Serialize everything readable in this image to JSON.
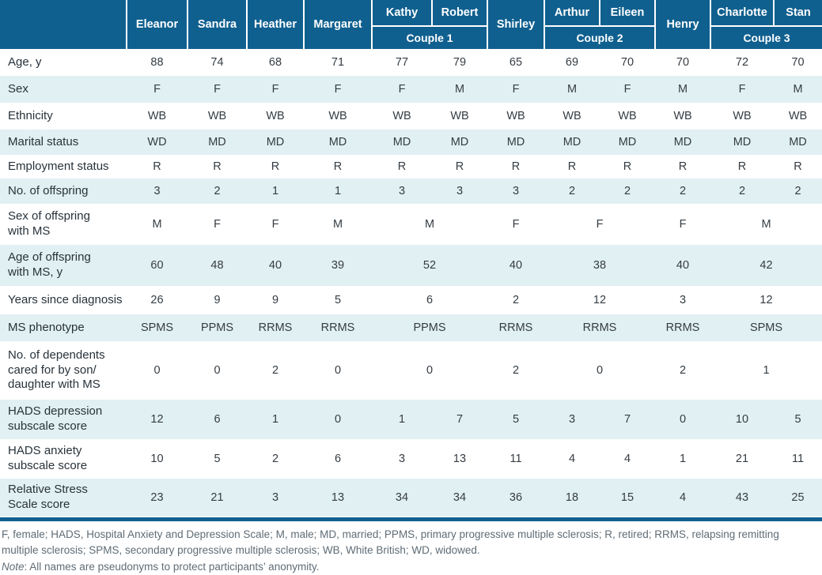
{
  "colors": {
    "header_blue": "#10608f",
    "row_band": "#e1f0f3"
  },
  "table": {
    "corner_label": "",
    "columns": [
      "Eleanor",
      "Sandra",
      "Heather",
      "Margaret",
      "Kathy",
      "Robert",
      "Shirley",
      "Arthur",
      "Eileen",
      "Henry",
      "Charlotte",
      "Stan"
    ],
    "couples": [
      {
        "label": "Couple 1",
        "start": 4,
        "span": 2
      },
      {
        "label": "Couple 2",
        "start": 7,
        "span": 2
      },
      {
        "label": "Couple 3",
        "start": 10,
        "span": 2
      }
    ],
    "rows": [
      {
        "label": "Age, y",
        "cells": [
          "88",
          "74",
          "68",
          "71",
          "77",
          "79",
          "65",
          "69",
          "70",
          "70",
          "72",
          "70"
        ]
      },
      {
        "label": "Sex",
        "cells": [
          "F",
          "F",
          "F",
          "F",
          "F",
          "M",
          "F",
          "M",
          "F",
          "M",
          "F",
          "M"
        ]
      },
      {
        "label": "Ethnicity",
        "cells": [
          "WB",
          "WB",
          "WB",
          "WB",
          "WB",
          "WB",
          "WB",
          "WB",
          "WB",
          "WB",
          "WB",
          "WB"
        ]
      },
      {
        "label": "Marital status",
        "cells": [
          "WD",
          "MD",
          "MD",
          "MD",
          "MD",
          "MD",
          "MD",
          "MD",
          "MD",
          "MD",
          "MD",
          "MD"
        ]
      },
      {
        "label": "Employment status",
        "cells": [
          "R",
          "R",
          "R",
          "R",
          "R",
          "R",
          "R",
          "R",
          "R",
          "R",
          "R",
          "R"
        ]
      },
      {
        "label": "No. of offspring",
        "cells": [
          "3",
          "2",
          "1",
          "1",
          "3",
          "3",
          "3",
          "2",
          "2",
          "2",
          "2",
          "2"
        ]
      },
      {
        "label": "Sex of offspring\nwith MS",
        "cells": [
          "M",
          "F",
          "F",
          "M",
          {
            "v": "M",
            "span": 2
          },
          "F",
          {
            "v": "F",
            "span": 2
          },
          "F",
          {
            "v": "M",
            "span": 2
          }
        ]
      },
      {
        "label": "Age of offspring\nwith MS, y",
        "cells": [
          "60",
          "48",
          "40",
          "39",
          {
            "v": "52",
            "span": 2
          },
          "40",
          {
            "v": "38",
            "span": 2
          },
          "40",
          {
            "v": "42",
            "span": 2
          }
        ]
      },
      {
        "label": "Years since diagnosis",
        "cells": [
          "26",
          "9",
          "9",
          "5",
          {
            "v": "6",
            "span": 2
          },
          "2",
          {
            "v": "12",
            "span": 2
          },
          "3",
          {
            "v": "12",
            "span": 2
          }
        ]
      },
      {
        "label": "MS phenotype",
        "cells": [
          "SPMS",
          "PPMS",
          "RRMS",
          "RRMS",
          {
            "v": "PPMS",
            "span": 2
          },
          "RRMS",
          {
            "v": "RRMS",
            "span": 2
          },
          "RRMS",
          {
            "v": "SPMS",
            "span": 2
          }
        ]
      },
      {
        "label": "No. of dependents\ncared for by son/\ndaughter with MS",
        "cells": [
          "0",
          "0",
          "2",
          "0",
          {
            "v": "0",
            "span": 2
          },
          "2",
          {
            "v": "0",
            "span": 2
          },
          "2",
          {
            "v": "1",
            "span": 2
          }
        ]
      },
      {
        "label": "HADS depression\nsubscale score",
        "cells": [
          "12",
          "6",
          "1",
          "0",
          "1",
          "7",
          "5",
          "3",
          "7",
          "0",
          "10",
          "5"
        ]
      },
      {
        "label": "HADS anxiety\nsubscale score",
        "cells": [
          "10",
          "5",
          "2",
          "6",
          "3",
          "13",
          "11",
          "4",
          "4",
          "1",
          "21",
          "11"
        ]
      },
      {
        "label": "Relative Stress\nScale score",
        "cells": [
          "23",
          "21",
          "3",
          "13",
          "34",
          "34",
          "36",
          "18",
          "15",
          "4",
          "43",
          "25"
        ]
      }
    ]
  },
  "footnotes": {
    "abbreviations": "F, female; HADS, Hospital Anxiety and Depression Scale; M, male; MD, married; PPMS, primary progressive multiple sclerosis; R, retired; RRMS, relapsing remitting multiple sclerosis; SPMS, secondary progressive multiple sclerosis; WB, White British; WD, widowed.",
    "note_label": "Note",
    "note_text": ": All names are pseudonyms to protect participants’ anonymity."
  }
}
